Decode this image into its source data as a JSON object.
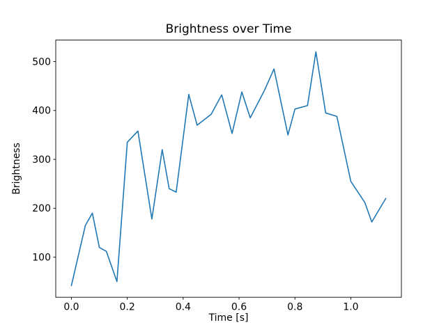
{
  "chart_data": {
    "type": "line",
    "title": "Brightness over Time",
    "xlabel": "Time [s]",
    "ylabel": "Brightness",
    "line_color": "#1f77b4",
    "background_color": "#ffffff",
    "spine_color": "#000000",
    "grid": false,
    "legend": "none",
    "x": [
      0.0,
      0.05,
      0.075,
      0.1,
      0.125,
      0.163,
      0.2,
      0.238,
      0.288,
      0.325,
      0.35,
      0.375,
      0.42,
      0.45,
      0.5,
      0.538,
      0.575,
      0.61,
      0.64,
      0.69,
      0.725,
      0.775,
      0.8,
      0.845,
      0.875,
      0.91,
      0.95,
      1.0,
      1.05,
      1.075,
      1.125
    ],
    "y": [
      42,
      165,
      190,
      120,
      112,
      50,
      335,
      358,
      178,
      320,
      240,
      233,
      433,
      370,
      392,
      432,
      353,
      438,
      385,
      440,
      485,
      350,
      403,
      410,
      520,
      395,
      388,
      255,
      212,
      172,
      220
    ],
    "xlim": [
      -0.056,
      1.181
    ],
    "ylim": [
      18,
      544
    ],
    "xticks": [
      0.0,
      0.2,
      0.4,
      0.6,
      0.8,
      1.0
    ],
    "xtick_labels": [
      "0.0",
      "0.2",
      "0.4",
      "0.6",
      "0.8",
      "1.0"
    ],
    "yticks": [
      100,
      200,
      300,
      400,
      500
    ],
    "ytick_labels": [
      "100",
      "200",
      "300",
      "400",
      "500"
    ]
  }
}
